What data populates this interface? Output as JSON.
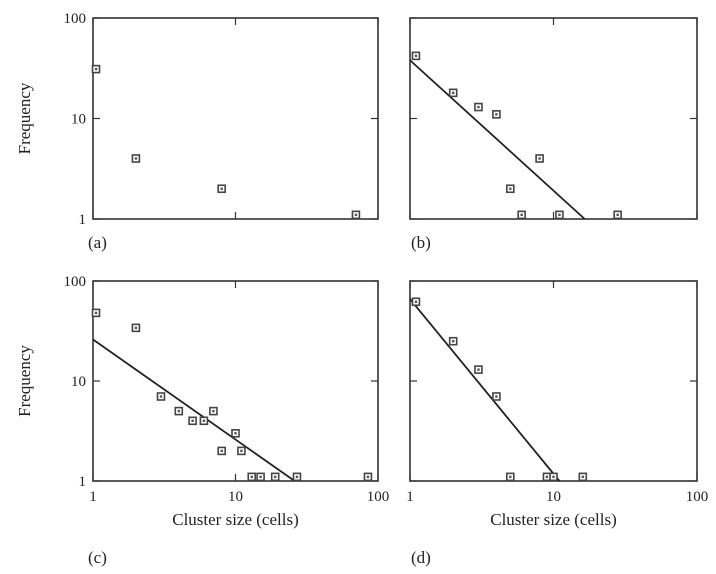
{
  "chart_data": [
    {
      "panel": "(a)",
      "type": "scatter",
      "xscale": "log",
      "yscale": "log",
      "xlim": [
        1,
        100
      ],
      "ylim": [
        1,
        100
      ],
      "ylabel": "Frequency",
      "xlabel": "",
      "points": [
        [
          1.05,
          31
        ],
        [
          2.0,
          4
        ],
        [
          8.0,
          2
        ],
        [
          70,
          1.1
        ]
      ],
      "fit": null
    },
    {
      "panel": "(b)",
      "type": "scatter",
      "xscale": "log",
      "yscale": "log",
      "xlim": [
        1,
        100
      ],
      "ylim": [
        1,
        100
      ],
      "ylabel": "",
      "xlabel": "",
      "points": [
        [
          1.1,
          42
        ],
        [
          2.0,
          18
        ],
        [
          3.0,
          13
        ],
        [
          4.0,
          11
        ],
        [
          5.0,
          2
        ],
        [
          6.0,
          1.1
        ],
        [
          8.0,
          4
        ],
        [
          11,
          1.1
        ],
        [
          28,
          1.1
        ]
      ],
      "fit": [
        [
          1.0,
          38
        ],
        [
          16.5,
          1.0
        ]
      ]
    },
    {
      "panel": "(c)",
      "type": "scatter",
      "xscale": "log",
      "yscale": "log",
      "xlim": [
        1,
        100
      ],
      "ylim": [
        1,
        100
      ],
      "ylabel": "Frequency",
      "xlabel": "Cluster size (cells)",
      "points": [
        [
          1.05,
          48
        ],
        [
          2.0,
          34
        ],
        [
          3.0,
          7
        ],
        [
          4.0,
          5
        ],
        [
          5.0,
          4
        ],
        [
          6.0,
          4
        ],
        [
          7.0,
          5
        ],
        [
          8.0,
          2
        ],
        [
          10,
          3
        ],
        [
          11,
          2
        ],
        [
          13,
          1.1
        ],
        [
          15,
          1.1
        ],
        [
          19,
          1.1
        ],
        [
          27,
          1.1
        ],
        [
          85,
          1.1
        ]
      ],
      "fit": [
        [
          1.0,
          26
        ],
        [
          26.0,
          1.0
        ]
      ]
    },
    {
      "panel": "(d)",
      "type": "scatter",
      "xscale": "log",
      "yscale": "log",
      "xlim": [
        1,
        100
      ],
      "ylim": [
        1,
        100
      ],
      "ylabel": "",
      "xlabel": "Cluster size (cells)",
      "points": [
        [
          1.1,
          62
        ],
        [
          2.0,
          25
        ],
        [
          3.0,
          13
        ],
        [
          4.0,
          7
        ],
        [
          5.0,
          1.1
        ],
        [
          9.0,
          1.1
        ],
        [
          10,
          1.1
        ],
        [
          16,
          1.1
        ]
      ],
      "fit": [
        [
          1.0,
          66
        ],
        [
          11.0,
          1.0
        ]
      ]
    }
  ],
  "tick_labels": {
    "y": [
      "1",
      "10",
      "100"
    ],
    "x": [
      "1",
      "10",
      "100"
    ]
  }
}
